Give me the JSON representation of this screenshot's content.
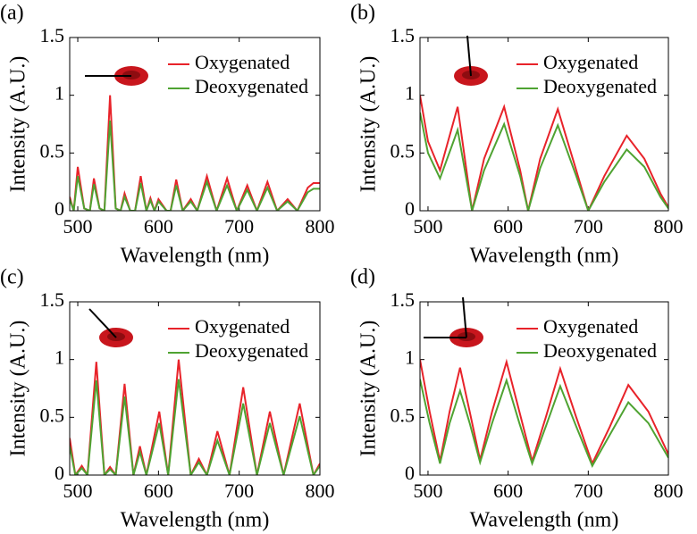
{
  "chart_data": [
    {
      "type": "line",
      "label": "(a)",
      "xlabel": "Wavelength (nm)",
      "ylabel": "Intensity (A.U.)",
      "xlim": [
        490,
        800
      ],
      "xticks": [
        500,
        600,
        700,
        800
      ],
      "ylim": [
        0,
        1.5
      ],
      "yticks": [
        0,
        0.5,
        1,
        1.5
      ],
      "legend": "upper right",
      "x": [
        490,
        495,
        500,
        508,
        515,
        520,
        527,
        533,
        540,
        547,
        553,
        558,
        565,
        571,
        578,
        585,
        590,
        595,
        600,
        610,
        615,
        622,
        630,
        640,
        648,
        660,
        672,
        685,
        697,
        710,
        722,
        735,
        747,
        760,
        772,
        785,
        792,
        800
      ],
      "series": [
        {
          "name": "Oxygenated",
          "color": "#e8232a",
          "values": [
            0.12,
            0,
            0.38,
            0.02,
            0,
            0.28,
            0.02,
            0,
            1.0,
            0.02,
            0,
            0.15,
            0,
            0,
            0.3,
            0,
            0.11,
            0,
            0.1,
            0,
            0,
            0.27,
            0,
            0.1,
            0,
            0.3,
            0,
            0.28,
            0,
            0.22,
            0,
            0.25,
            0,
            0.1,
            0,
            0.2,
            0.24,
            0.24
          ]
        },
        {
          "name": "Deoxygenated",
          "color": "#4fa332",
          "values": [
            0.1,
            0,
            0.3,
            0.02,
            0,
            0.23,
            0.02,
            0,
            0.78,
            0.02,
            0,
            0.12,
            0,
            0,
            0.24,
            0,
            0.09,
            0,
            0.08,
            0,
            0,
            0.22,
            0,
            0.08,
            0,
            0.25,
            0,
            0.22,
            0,
            0.18,
            0,
            0.2,
            0,
            0.08,
            0,
            0.16,
            0.19,
            0.19
          ]
        }
      ]
    },
    {
      "type": "line",
      "label": "(b)",
      "xlabel": "Wavelength (nm)",
      "ylabel": "Intensity (A.U.)",
      "xlim": [
        490,
        800
      ],
      "xticks": [
        500,
        600,
        700,
        800
      ],
      "ylim": [
        0,
        1.5
      ],
      "yticks": [
        0,
        0.5,
        1,
        1.5
      ],
      "legend": "upper right",
      "x": [
        490,
        500,
        515,
        537,
        555,
        570,
        595,
        615,
        625,
        640,
        662,
        685,
        700,
        720,
        748,
        770,
        790,
        800
      ],
      "series": [
        {
          "name": "Oxygenated",
          "color": "#e8232a",
          "values": [
            1.0,
            0.6,
            0.35,
            0.9,
            0,
            0.45,
            0.9,
            0.35,
            0,
            0.45,
            0.88,
            0.35,
            0,
            0.3,
            0.65,
            0.45,
            0.15,
            0.03
          ]
        },
        {
          "name": "Deoxygenated",
          "color": "#4fa332",
          "values": [
            0.85,
            0.5,
            0.28,
            0.7,
            0,
            0.35,
            0.75,
            0.3,
            0,
            0.37,
            0.74,
            0.3,
            0,
            0.25,
            0.53,
            0.38,
            0.12,
            0.02
          ]
        }
      ]
    },
    {
      "type": "line",
      "label": "(c)",
      "xlabel": "Wavelength (nm)",
      "ylabel": "Intensity (A.U.)",
      "xlim": [
        490,
        800
      ],
      "xticks": [
        500,
        600,
        700,
        800
      ],
      "ylim": [
        0,
        1.5
      ],
      "yticks": [
        0,
        0.5,
        1,
        1.5
      ],
      "legend": "upper right",
      "x": [
        490,
        497,
        505,
        512,
        523,
        533,
        540,
        547,
        558,
        569,
        577,
        585,
        601,
        612,
        625,
        640,
        650,
        660,
        673,
        688,
        705,
        722,
        738,
        755,
        775,
        792,
        800
      ],
      "series": [
        {
          "name": "Oxygenated",
          "color": "#e8232a",
          "values": [
            0.32,
            0,
            0.08,
            0,
            0.98,
            0,
            0.07,
            0,
            0.79,
            0,
            0.25,
            0,
            0.55,
            0,
            1.0,
            0,
            0.14,
            0,
            0.38,
            0,
            0.76,
            0,
            0.55,
            0,
            0.62,
            0,
            0.1
          ]
        },
        {
          "name": "Deoxygenated",
          "color": "#4fa332",
          "values": [
            0.25,
            0,
            0.06,
            0,
            0.82,
            0,
            0.05,
            0,
            0.68,
            0,
            0.2,
            0,
            0.45,
            0,
            0.83,
            0,
            0.11,
            0,
            0.3,
            0,
            0.62,
            0,
            0.45,
            0,
            0.51,
            0,
            0.08
          ]
        }
      ]
    },
    {
      "type": "line",
      "label": "(d)",
      "xlabel": "Wavelength (nm)",
      "ylabel": "Intensity (A.U.)",
      "xlim": [
        490,
        800
      ],
      "xticks": [
        500,
        600,
        700,
        800
      ],
      "ylim": [
        0,
        1.5
      ],
      "yticks": [
        0,
        0.5,
        1,
        1.5
      ],
      "legend": "upper right",
      "x": [
        490,
        502,
        515,
        527,
        540,
        552,
        565,
        580,
        598,
        614,
        630,
        647,
        665,
        685,
        705,
        727,
        750,
        775,
        800
      ],
      "series": [
        {
          "name": "Oxygenated",
          "color": "#e8232a",
          "values": [
            1.0,
            0.55,
            0.12,
            0.55,
            0.93,
            0.55,
            0.13,
            0.55,
            0.98,
            0.55,
            0.12,
            0.5,
            0.92,
            0.5,
            0.1,
            0.42,
            0.78,
            0.55,
            0.18
          ]
        },
        {
          "name": "Deoxygenated",
          "color": "#4fa332",
          "values": [
            0.83,
            0.45,
            0.1,
            0.45,
            0.73,
            0.45,
            0.11,
            0.45,
            0.82,
            0.45,
            0.1,
            0.42,
            0.77,
            0.42,
            0.08,
            0.35,
            0.63,
            0.45,
            0.15
          ]
        }
      ]
    }
  ]
}
